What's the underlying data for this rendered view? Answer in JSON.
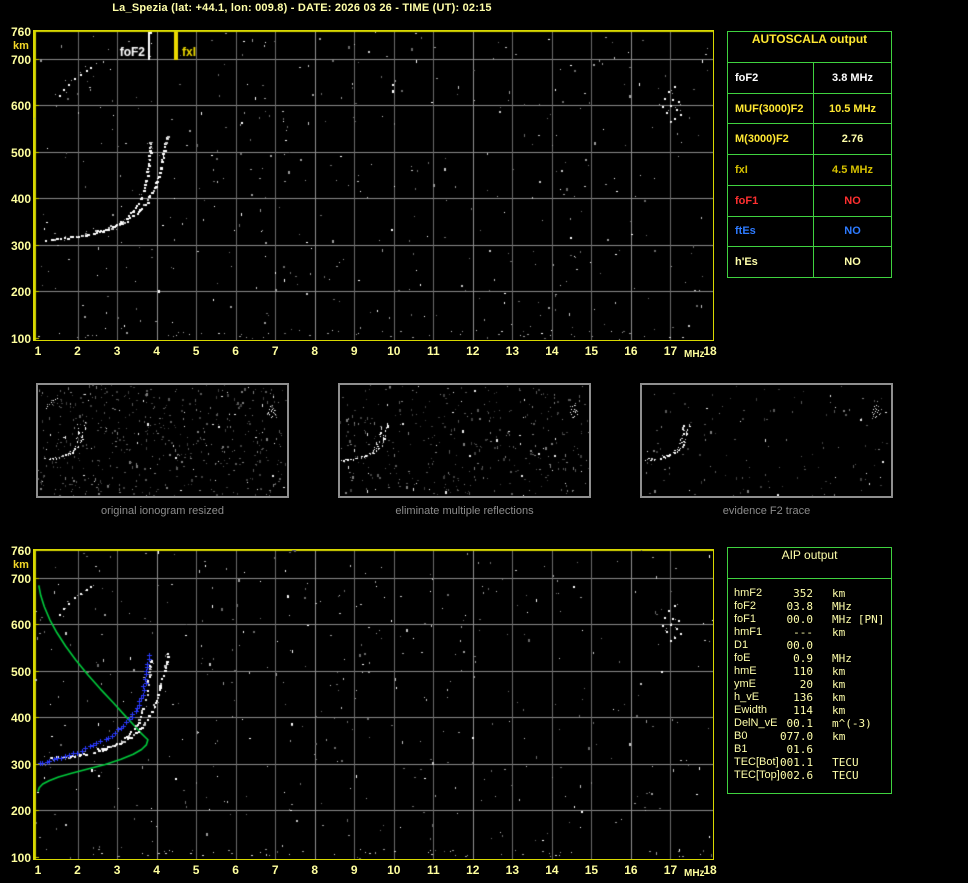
{
  "title": "La_Spezia (lat: +44.1, lon: 009.8) - DATE: 2026 03 26 - TIME (UT): 02:15",
  "colors": {
    "background": "#000000",
    "frame_yellow": "#d8d800",
    "tick_label": "#ffff9e",
    "unit_label": "#f2d628",
    "table_border_green": "#3fd23f",
    "profile_green": "#00cc3c",
    "fitted_blue": "#2a3aff",
    "caption_gray": "#8c8c8c",
    "marker_fof2": "#ffffff",
    "marker_fxi": "#ecd900"
  },
  "autoscala": {
    "header": "AUTOSCALA output",
    "rows": [
      {
        "label": "foF2",
        "value": "3.8 MHz",
        "label_color": "#ffffff",
        "value_color": "#ffffff"
      },
      {
        "label": "MUF(3000)F2",
        "value": "10.5 MHz",
        "label_color": "#ffe832",
        "value_color": "#ffe832"
      },
      {
        "label": "M(3000)F2",
        "value": "2.76",
        "label_color": "#ffe832",
        "value_color": "#ffffaa"
      },
      {
        "label": "fxI",
        "value": "4.5 MHz",
        "label_color": "#d6c100",
        "value_color": "#d6c100"
      },
      {
        "label": "foF1",
        "value": "NO",
        "label_color": "#ff3030",
        "value_color": "#ff3030"
      },
      {
        "label": "ftEs",
        "value": "NO",
        "label_color": "#2e7bff",
        "value_color": "#2e7bff"
      },
      {
        "label": "h'Es",
        "value": "NO",
        "label_color": "#ffffaa",
        "value_color": "#ffffaa"
      }
    ]
  },
  "aip": {
    "header": "AIP output",
    "rows": [
      {
        "label": "hmF2",
        "value": "352",
        "unit": "km"
      },
      {
        "label": "foF2",
        "value": "03.8",
        "unit": "MHz"
      },
      {
        "label": "foF1",
        "value": "00.0",
        "unit": "MHz",
        "note": "[PN]"
      },
      {
        "label": "hmF1",
        "value": "---",
        "unit": "km"
      },
      {
        "label": "D1",
        "value": "00.0",
        "unit": ""
      },
      {
        "label": "foE",
        "value": "0.9",
        "unit": "MHz"
      },
      {
        "label": "hmE",
        "value": "110",
        "unit": "km"
      },
      {
        "label": "ymE",
        "value": "20",
        "unit": "km"
      },
      {
        "label": "h_vE",
        "value": "136",
        "unit": "km"
      },
      {
        "label": "Ewidth",
        "value": "114",
        "unit": "km"
      },
      {
        "label": "DelN_vE",
        "value": "00.1",
        "unit": "m^(-3)"
      },
      {
        "label": "B0",
        "value": "077.0",
        "unit": "km"
      },
      {
        "label": "B1",
        "value": "01.6",
        "unit": ""
      },
      {
        "label": "TEC[Bot]",
        "value": "001.1",
        "unit": "TECU"
      },
      {
        "label": "TEC[Top]",
        "value": "002.6",
        "unit": "TECU"
      }
    ]
  },
  "thumbnails": [
    {
      "caption": "original ionogram resized"
    },
    {
      "caption": "eliminate multiple reflections"
    },
    {
      "caption": "evidence F2 trace"
    }
  ],
  "chart_data": [
    {
      "type": "scatter",
      "title": "ionogram with autoscaled characteristics",
      "xlabel": "MHz",
      "ylabel": "km",
      "xlim": [
        1,
        18
      ],
      "ylim": [
        100,
        760
      ],
      "x_ticks": [
        1,
        2,
        3,
        4,
        5,
        6,
        7,
        8,
        9,
        10,
        11,
        12,
        13,
        14,
        15,
        16,
        17,
        18
      ],
      "y_ticks": [
        760,
        700,
        600,
        500,
        400,
        300,
        200,
        100
      ],
      "grid": true,
      "markers": [
        {
          "label": "foF2",
          "mhz": 3.8,
          "color": "#ffffff",
          "width": 2,
          "side": "left"
        },
        {
          "label": "fxI",
          "mhz": 4.5,
          "color": "#ecd900",
          "width": 4,
          "side": "right"
        }
      ],
      "series": [
        {
          "name": "F2 trace ordinary",
          "style": "trace",
          "color": "#ffffff",
          "points": [
            [
              1.15,
              310
            ],
            [
              1.35,
              312
            ],
            [
              1.55,
              314
            ],
            [
              1.75,
              316
            ],
            [
              1.95,
              318
            ],
            [
              2.15,
              321
            ],
            [
              2.35,
              324
            ],
            [
              2.55,
              328
            ],
            [
              2.75,
              333
            ],
            [
              2.95,
              340
            ],
            [
              3.1,
              348
            ],
            [
              3.25,
              358
            ],
            [
              3.4,
              371
            ],
            [
              3.5,
              386
            ],
            [
              3.6,
              404
            ],
            [
              3.68,
              425
            ],
            [
              3.74,
              449
            ],
            [
              3.79,
              476
            ],
            [
              3.83,
              503
            ],
            [
              3.86,
              528
            ]
          ]
        },
        {
          "name": "F2 trace extraordinary",
          "style": "trace",
          "color": "#ffffff",
          "points": [
            [
              2.45,
              330
            ],
            [
              2.65,
              334
            ],
            [
              2.85,
              339
            ],
            [
              3.05,
              345
            ],
            [
              3.25,
              353
            ],
            [
              3.45,
              364
            ],
            [
              3.6,
              377
            ],
            [
              3.75,
              393
            ],
            [
              3.88,
              413
            ],
            [
              3.99,
              437
            ],
            [
              4.08,
              463
            ],
            [
              4.16,
              490
            ],
            [
              4.23,
              517
            ],
            [
              4.29,
              540
            ]
          ]
        },
        {
          "name": "second hop echo",
          "style": "dots",
          "color": "#ffffff",
          "points": [
            [
              1.55,
              622
            ],
            [
              1.65,
              634
            ],
            [
              1.78,
              646
            ],
            [
              1.92,
              657
            ],
            [
              2.08,
              666
            ],
            [
              2.22,
              675
            ],
            [
              2.33,
              682
            ]
          ]
        },
        {
          "name": "interference cluster",
          "style": "dots",
          "color": "#ffffff",
          "points": [
            [
              16.9,
              585
            ],
            [
              17.0,
              600
            ],
            [
              17.05,
              612
            ],
            [
              17.1,
              572
            ],
            [
              17.15,
              592
            ],
            [
              17.2,
              608
            ],
            [
              16.95,
              630
            ],
            [
              17.1,
              640
            ],
            [
              16.8,
              598
            ],
            [
              17.25,
              580
            ],
            [
              16.85,
              615
            ],
            [
              17.0,
              565
            ]
          ]
        }
      ]
    },
    {
      "type": "scatter",
      "title": "ionogram with AIP inversion: restored trace and electron density profile",
      "xlabel": "MHz",
      "ylabel": "km",
      "xlim": [
        1,
        18
      ],
      "ylim": [
        100,
        760
      ],
      "x_ticks": [
        1,
        2,
        3,
        4,
        5,
        6,
        7,
        8,
        9,
        10,
        11,
        12,
        13,
        14,
        15,
        16,
        17,
        18
      ],
      "y_ticks": [
        760,
        700,
        600,
        500,
        400,
        300,
        200,
        100
      ],
      "grid": true,
      "markers": [],
      "series": [
        {
          "name": "electron density profile N(h)",
          "style": "line",
          "color": "#00cc3c",
          "points": [
            [
              1.02,
              684
            ],
            [
              1.07,
              662
            ],
            [
              1.16,
              638
            ],
            [
              1.3,
              610
            ],
            [
              1.48,
              582
            ],
            [
              1.7,
              553
            ],
            [
              1.96,
              523
            ],
            [
              2.26,
              492
            ],
            [
              2.58,
              461
            ],
            [
              2.9,
              432
            ],
            [
              3.2,
              404
            ],
            [
              3.44,
              382
            ],
            [
              3.6,
              367
            ],
            [
              3.72,
              357
            ],
            [
              3.78,
              352
            ],
            [
              3.74,
              341
            ],
            [
              3.62,
              331
            ],
            [
              3.41,
              321
            ],
            [
              3.1,
              310
            ],
            [
              2.7,
              299
            ],
            [
              2.26,
              289
            ],
            [
              1.85,
              280
            ],
            [
              1.52,
              272
            ],
            [
              1.28,
              264
            ],
            [
              1.12,
              257
            ],
            [
              1.03,
              249
            ],
            [
              1.0,
              241
            ]
          ]
        },
        {
          "name": "F2 trace ordinary",
          "style": "trace",
          "color": "#ffffff",
          "points": [
            [
              1.15,
              310
            ],
            [
              1.35,
              312
            ],
            [
              1.55,
              314
            ],
            [
              1.75,
              316
            ],
            [
              1.95,
              318
            ],
            [
              2.15,
              321
            ],
            [
              2.35,
              324
            ],
            [
              2.55,
              328
            ],
            [
              2.75,
              333
            ],
            [
              2.95,
              340
            ],
            [
              3.1,
              348
            ],
            [
              3.25,
              358
            ],
            [
              3.4,
              371
            ],
            [
              3.5,
              386
            ],
            [
              3.6,
              404
            ],
            [
              3.68,
              425
            ],
            [
              3.74,
              449
            ],
            [
              3.79,
              476
            ],
            [
              3.83,
              503
            ],
            [
              3.86,
              528
            ]
          ]
        },
        {
          "name": "F2 trace extraordinary",
          "style": "trace",
          "color": "#ffffff",
          "points": [
            [
              2.45,
              330
            ],
            [
              2.65,
              334
            ],
            [
              2.85,
              339
            ],
            [
              3.05,
              345
            ],
            [
              3.25,
              353
            ],
            [
              3.45,
              364
            ],
            [
              3.6,
              377
            ],
            [
              3.75,
              393
            ],
            [
              3.88,
              413
            ],
            [
              3.99,
              437
            ],
            [
              4.08,
              463
            ],
            [
              4.16,
              490
            ],
            [
              4.23,
              517
            ],
            [
              4.29,
              540
            ]
          ]
        },
        {
          "name": "second hop echo",
          "style": "dots",
          "color": "#ffffff",
          "points": [
            [
              1.55,
              622
            ],
            [
              1.65,
              634
            ],
            [
              1.78,
              646
            ],
            [
              1.92,
              657
            ],
            [
              2.08,
              666
            ],
            [
              2.22,
              675
            ],
            [
              2.33,
              682
            ]
          ]
        },
        {
          "name": "interference cluster",
          "style": "dots",
          "color": "#ffffff",
          "points": [
            [
              16.9,
              585
            ],
            [
              17.0,
              600
            ],
            [
              17.05,
              612
            ],
            [
              17.1,
              572
            ],
            [
              17.15,
              592
            ],
            [
              17.2,
              608
            ],
            [
              16.95,
              630
            ],
            [
              17.1,
              640
            ],
            [
              16.8,
              598
            ],
            [
              17.25,
              580
            ],
            [
              16.85,
              615
            ],
            [
              17.0,
              565
            ]
          ]
        },
        {
          "name": "restored F2 trace",
          "style": "cross",
          "color": "#2a3aff",
          "points": [
            [
              1.05,
              300
            ],
            [
              1.3,
              306
            ],
            [
              1.6,
              313
            ],
            [
              1.9,
              321
            ],
            [
              2.2,
              331
            ],
            [
              2.5,
              343
            ],
            [
              2.8,
              357
            ],
            [
              3.05,
              372
            ],
            [
              3.25,
              388
            ],
            [
              3.42,
              406
            ],
            [
              3.55,
              426
            ],
            [
              3.65,
              449
            ],
            [
              3.72,
              474
            ],
            [
              3.77,
              500
            ],
            [
              3.8,
              524
            ],
            [
              3.82,
              545
            ]
          ]
        }
      ]
    }
  ]
}
